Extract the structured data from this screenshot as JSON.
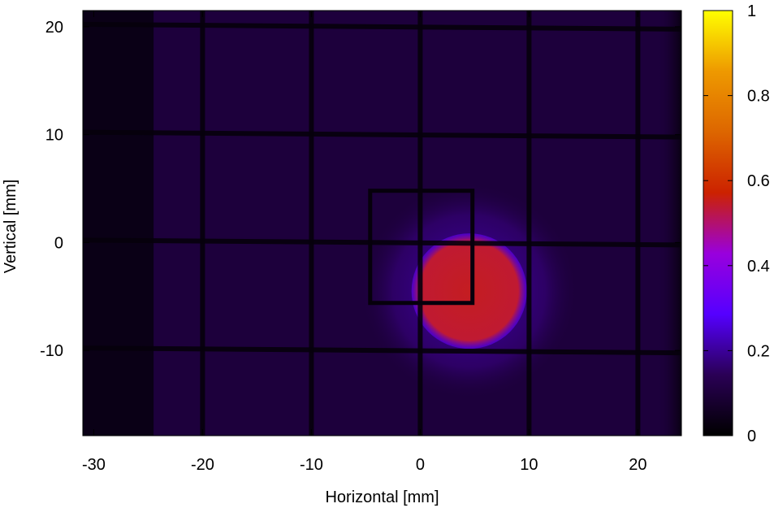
{
  "chart_data": {
    "type": "heatmap",
    "title": "",
    "xlabel": "Horizontal [mm]",
    "ylabel": "Vertical [mm]",
    "xlim": [
      -31,
      24
    ],
    "ylim": [
      -17.9,
      21.5
    ],
    "x_ticks": [
      -30,
      -20,
      -10,
      0,
      10,
      20
    ],
    "x_tick_labels": [
      "-30",
      "-20",
      "-10",
      "0",
      "10",
      "20"
    ],
    "y_ticks": [
      -10,
      0,
      10,
      20
    ],
    "y_tick_labels": [
      "-10",
      "0",
      "10",
      "20"
    ],
    "colorbar": {
      "range": [
        0,
        1
      ],
      "ticks": [
        0,
        0.2,
        0.4,
        0.6,
        0.8,
        1
      ],
      "tick_labels": [
        "0",
        "0.2",
        "0.4",
        "0.6",
        "0.8",
        "1"
      ],
      "colormap": [
        "#000000",
        "#2a0055",
        "#5500ff",
        "#9900dd",
        "#cc2200",
        "#dd6600",
        "#ee9900",
        "#ffff00"
      ]
    },
    "background_intensity": 0.1,
    "dark_band_x_range": [
      -31,
      -24.5
    ],
    "grid_lines": {
      "vertical_x": [
        -20,
        -10,
        0,
        10,
        20
      ],
      "horizontal_y": [
        20,
        10,
        0,
        -10
      ],
      "intensity": 0.02
    },
    "beam_spot": {
      "center": [
        4.5,
        -4.5
      ],
      "radius": 5.3,
      "peak_intensity": 0.55,
      "halo_radius": 10,
      "halo_intensity": 0.22
    },
    "square_frame": {
      "x_range": [
        -4.6,
        4.8
      ],
      "y_range": [
        -5.6,
        4.8
      ]
    },
    "grid": false,
    "legend": "colorbar right"
  }
}
